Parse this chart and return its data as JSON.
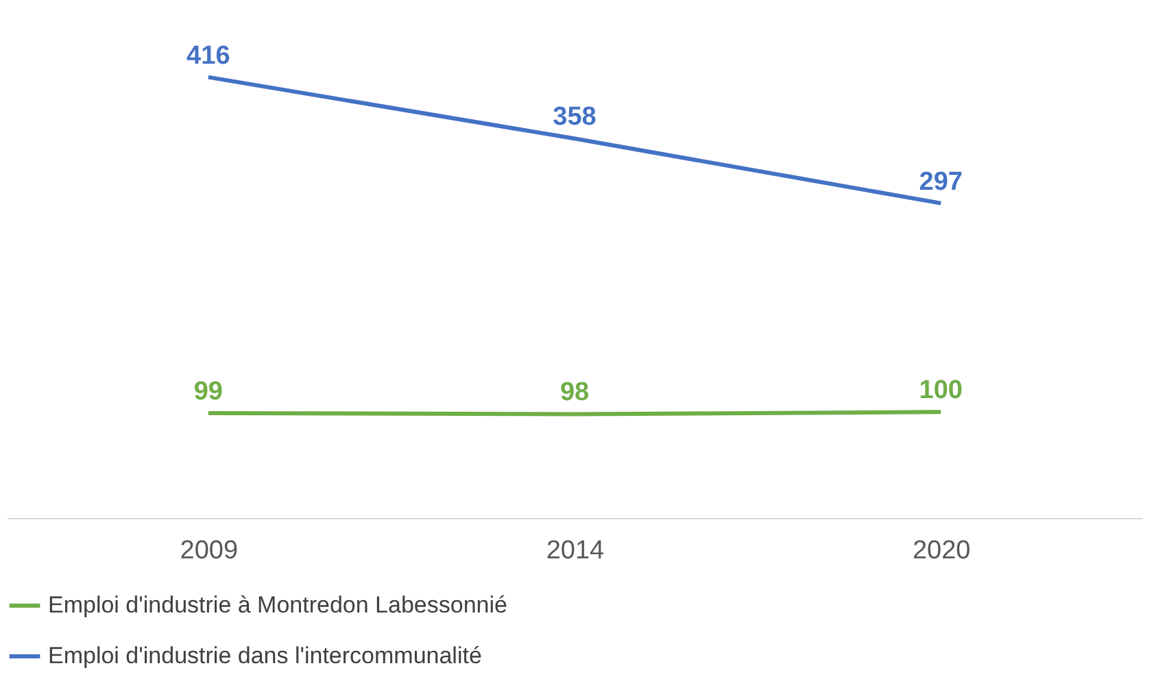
{
  "chart_data": {
    "type": "line",
    "categories": [
      "2009",
      "2014",
      "2020"
    ],
    "series": [
      {
        "name": "Emploi d'industrie à Montredon Labessonnié",
        "color": "#70ad47",
        "values": [
          99,
          98,
          100
        ]
      },
      {
        "name": "Emploi d'industrie dans l'intercommunalité",
        "color": "#4472c4",
        "values": [
          416,
          358,
          297
        ]
      }
    ],
    "data_labels": true,
    "legend": "bottom",
    "grid": false,
    "marker": "none",
    "line_style": "solid"
  }
}
